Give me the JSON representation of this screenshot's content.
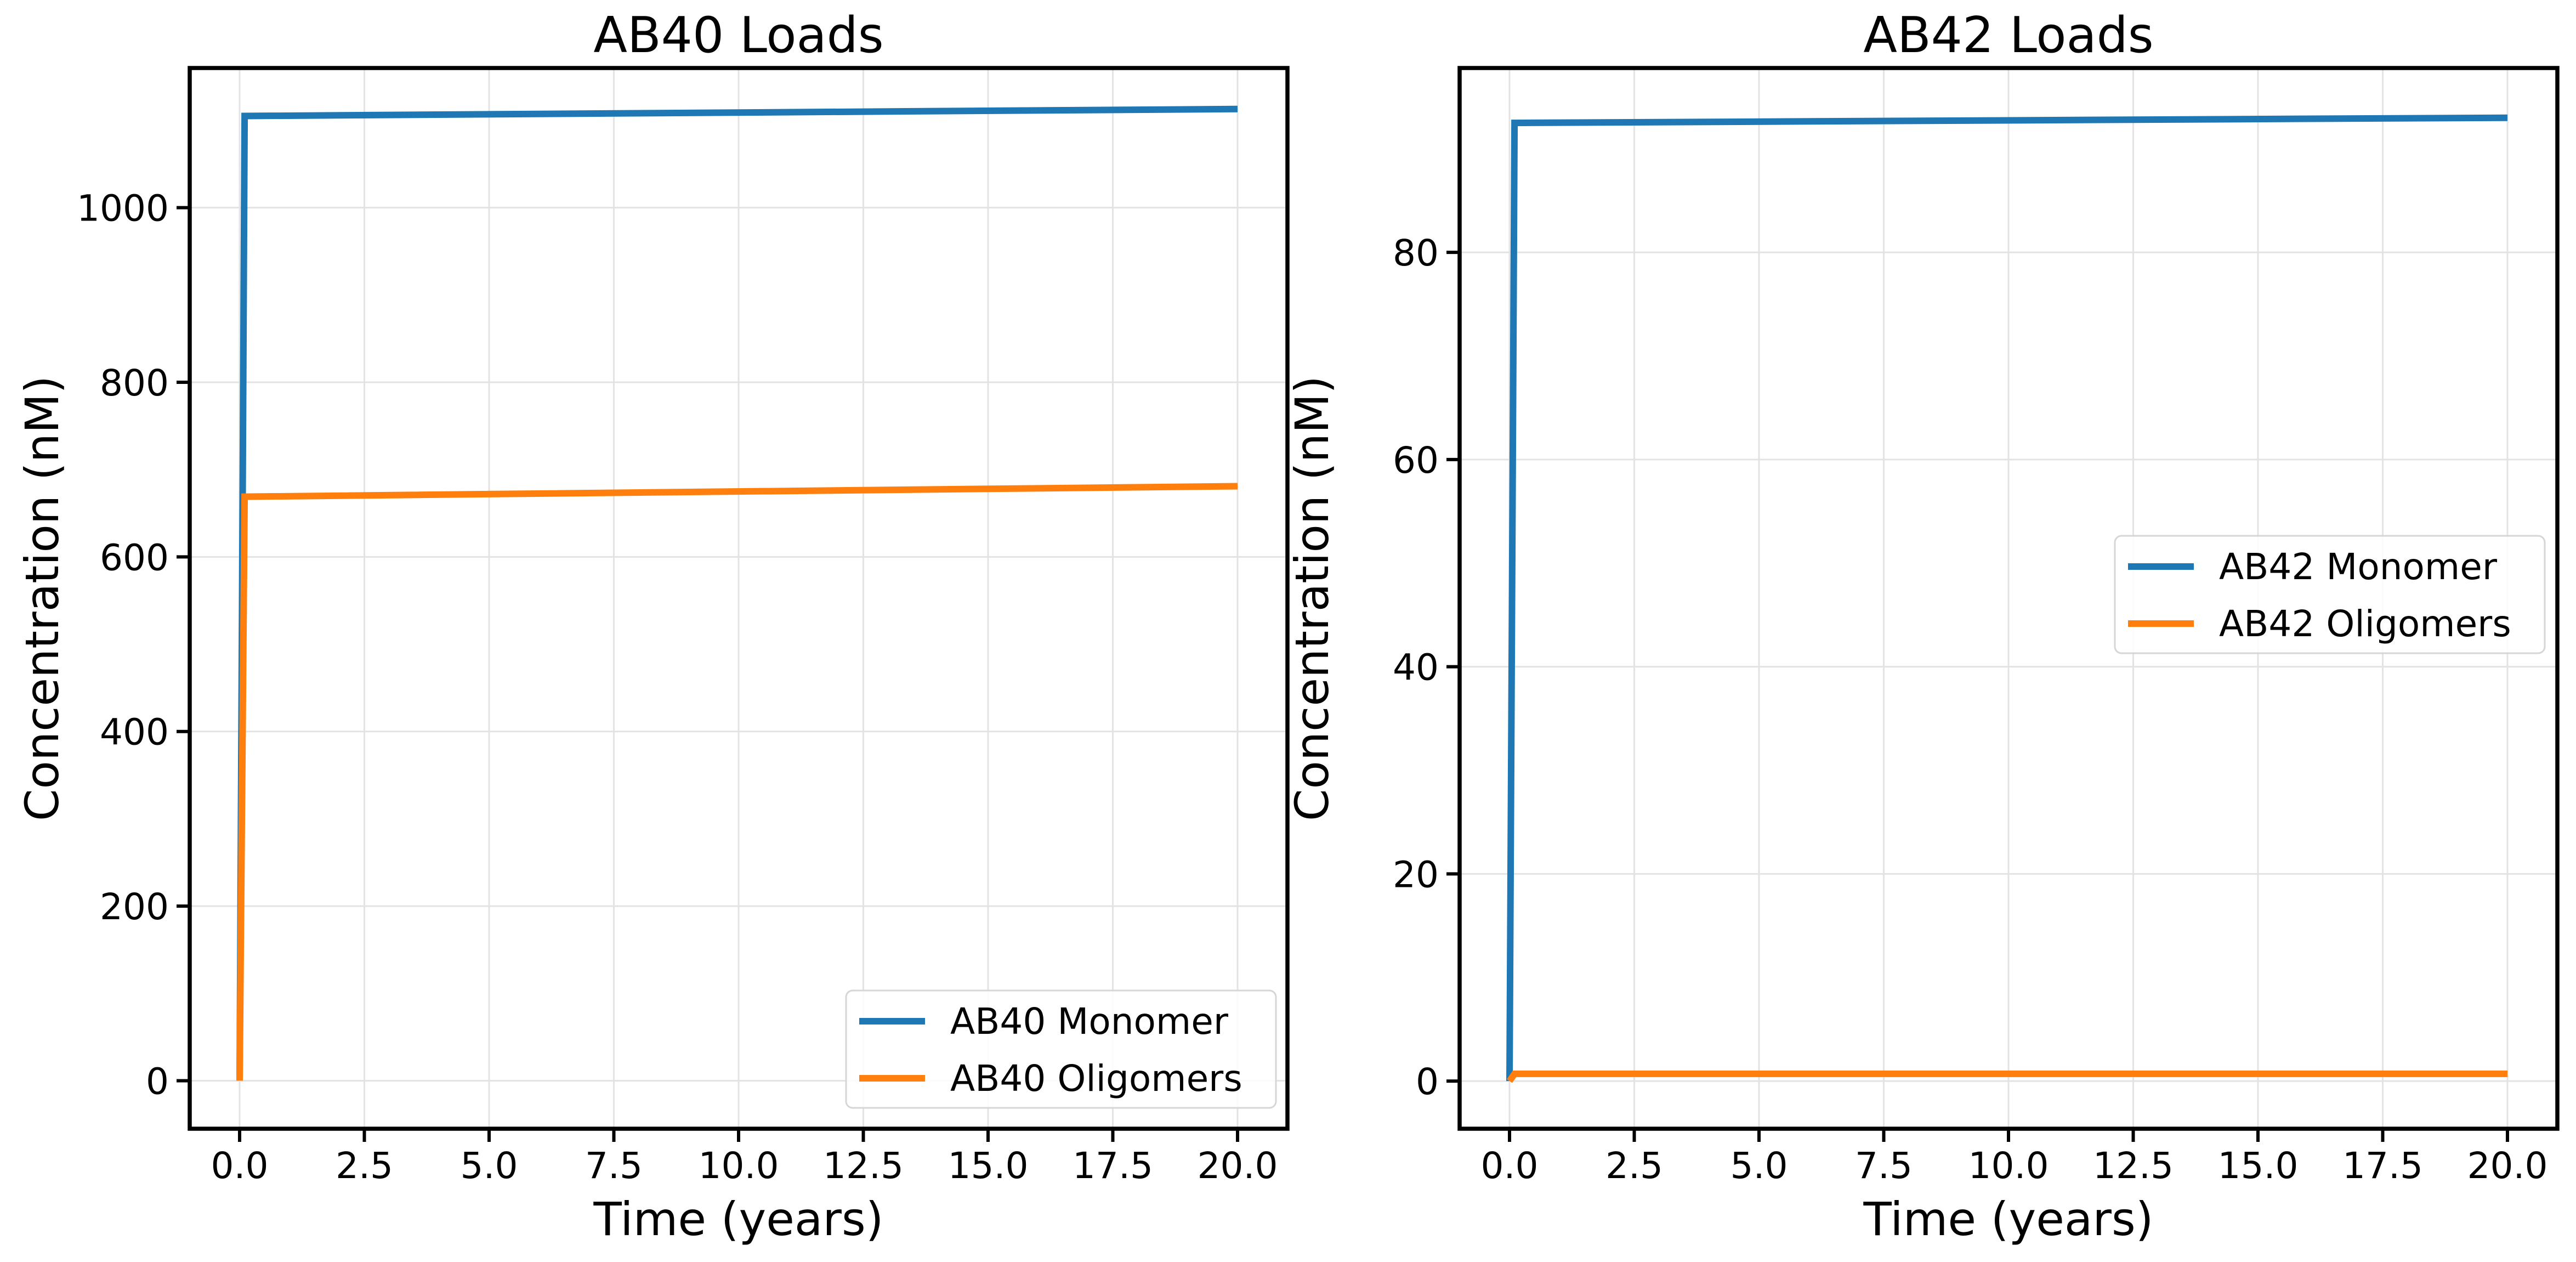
{
  "chart_data": [
    {
      "type": "line",
      "title": "AB40 Loads",
      "xlabel": "Time (years)",
      "ylabel": "Concentration (nM)",
      "xlim": [
        -1.0,
        21.0
      ],
      "ylim": [
        -55,
        1160
      ],
      "xticks": [
        0.0,
        2.5,
        5.0,
        7.5,
        10.0,
        12.5,
        15.0,
        17.5,
        20.0
      ],
      "xtick_labels": [
        "0.0",
        "2.5",
        "5.0",
        "7.5",
        "10.0",
        "12.5",
        "15.0",
        "17.5",
        "20.0"
      ],
      "yticks": [
        0,
        200,
        400,
        600,
        800,
        1000
      ],
      "ytick_labels": [
        "0",
        "200",
        "400",
        "600",
        "800",
        "1000"
      ],
      "grid": true,
      "legend_position": "lower-right",
      "series": [
        {
          "name": "AB40 Monomer",
          "color": "#1f77b4",
          "x": [
            0.0,
            0.1,
            20.0
          ],
          "y": [
            0,
            1105,
            1113
          ]
        },
        {
          "name": "AB40 Oligomers",
          "color": "#ff7f0e",
          "x": [
            0.0,
            0.1,
            20.0
          ],
          "y": [
            0,
            669,
            681
          ]
        }
      ]
    },
    {
      "type": "line",
      "title": "AB42 Loads",
      "xlabel": "Time (years)",
      "ylabel": "Concentration (nM)",
      "xlim": [
        -1.0,
        21.0
      ],
      "ylim": [
        -4.6,
        97.8
      ],
      "xticks": [
        0.0,
        2.5,
        5.0,
        7.5,
        10.0,
        12.5,
        15.0,
        17.5,
        20.0
      ],
      "xtick_labels": [
        "0.0",
        "2.5",
        "5.0",
        "7.5",
        "10.0",
        "12.5",
        "15.0",
        "17.5",
        "20.0"
      ],
      "yticks": [
        0,
        20,
        40,
        60,
        80
      ],
      "ytick_labels": [
        "0",
        "20",
        "40",
        "60",
        "80"
      ],
      "grid": true,
      "legend_position": "center-right",
      "series": [
        {
          "name": "AB42 Monomer",
          "color": "#1f77b4",
          "x": [
            0.0,
            0.1,
            20.0
          ],
          "y": [
            0,
            92.5,
            93.0
          ]
        },
        {
          "name": "AB42 Oligomers",
          "color": "#ff7f0e",
          "x": [
            0.0,
            0.1,
            20.0
          ],
          "y": [
            0,
            0.7,
            0.7
          ]
        }
      ]
    }
  ]
}
